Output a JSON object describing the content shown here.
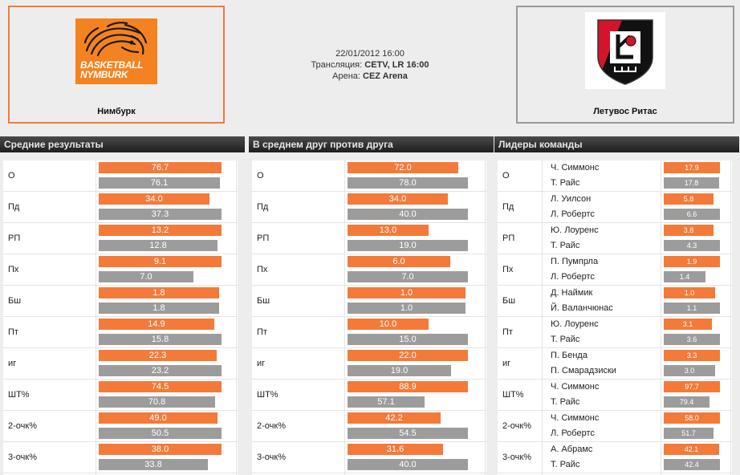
{
  "home_team": {
    "name": "Нимбурк",
    "logo_line1": "BASKETBALL",
    "logo_line2": "NYMBURK",
    "color": "#f47a3a"
  },
  "away_team": {
    "name": "Летувос Ритас",
    "color": "#9a9a9a"
  },
  "match": {
    "date": "22/01/2012 16:00",
    "broadcast_label": "Трансляция:",
    "broadcast": "CETV, LR 16:00",
    "arena_label": "Арена:",
    "arena": "CEZ Arena"
  },
  "colors": {
    "home_bar": "#f47a3a",
    "away_bar": "#9c9c9c"
  },
  "panels": [
    {
      "title": "Средние результаты",
      "rows": [
        {
          "label": "О",
          "home": "76.7",
          "away": "76.1",
          "home_frac": 1.0,
          "away_frac": 0.99
        },
        {
          "label": "Пд",
          "home": "34.0",
          "away": "37.3",
          "home_frac": 0.9,
          "away_frac": 1.0
        },
        {
          "label": "РП",
          "home": "13.2",
          "away": "12.8",
          "home_frac": 1.0,
          "away_frac": 0.97
        },
        {
          "label": "Пх",
          "home": "9.1",
          "away": "7.0",
          "home_frac": 1.0,
          "away_frac": 0.77
        },
        {
          "label": "Бш",
          "home": "1.8",
          "away": "1.8",
          "home_frac": 0.98,
          "away_frac": 0.98
        },
        {
          "label": "Пт",
          "home": "14.9",
          "away": "15.8",
          "home_frac": 0.94,
          "away_frac": 1.0
        },
        {
          "label": "иг",
          "home": "22.3",
          "away": "23.2",
          "home_frac": 0.96,
          "away_frac": 1.0
        },
        {
          "label": "ШТ%",
          "home": "74.5",
          "away": "70.8",
          "home_frac": 1.0,
          "away_frac": 0.95
        },
        {
          "label": "2-очк%",
          "home": "49.0",
          "away": "50.5",
          "home_frac": 0.97,
          "away_frac": 1.0
        },
        {
          "label": "3-очк%",
          "home": "38.0",
          "away": "33.8",
          "home_frac": 1.0,
          "away_frac": 0.89
        }
      ]
    },
    {
      "title": "В среднем друг против друга",
      "rows": [
        {
          "label": "О",
          "home": "72.0",
          "away": "78.0",
          "home_frac": 0.92,
          "away_frac": 1.0
        },
        {
          "label": "Пд",
          "home": "34.0",
          "away": "40.0",
          "home_frac": 0.83,
          "away_frac": 1.0
        },
        {
          "label": "РП",
          "home": "13.0",
          "away": "19.0",
          "home_frac": 0.67,
          "away_frac": 1.0
        },
        {
          "label": "Пх",
          "home": "6.0",
          "away": "7.0",
          "home_frac": 0.85,
          "away_frac": 1.0
        },
        {
          "label": "Бш",
          "home": "1.0",
          "away": "1.0",
          "home_frac": 0.98,
          "away_frac": 0.98
        },
        {
          "label": "Пт",
          "home": "10.0",
          "away": "15.0",
          "home_frac": 0.67,
          "away_frac": 1.0
        },
        {
          "label": "иг",
          "home": "22.0",
          "away": "19.0",
          "home_frac": 1.0,
          "away_frac": 0.86
        },
        {
          "label": "ШТ%",
          "home": "88.9",
          "away": "57.1",
          "home_frac": 1.0,
          "away_frac": 0.64
        },
        {
          "label": "2-очк%",
          "home": "42.2",
          "away": "54.5",
          "home_frac": 0.77,
          "away_frac": 1.0
        },
        {
          "label": "3-очк%",
          "home": "31.6",
          "away": "40.0",
          "home_frac": 0.79,
          "away_frac": 1.0
        }
      ]
    },
    {
      "title": "Лидеры команды",
      "rows": [
        {
          "label": "О",
          "home_player": "Ч. Симмонс",
          "away_player": "Т. Райс",
          "home": "17.9",
          "away": "17.8",
          "home_frac": 1.0,
          "away_frac": 0.99
        },
        {
          "label": "Пд",
          "home_player": "Л. Уилсон",
          "away_player": "Л. Робертс",
          "home": "5.8",
          "away": "6.6",
          "home_frac": 0.88,
          "away_frac": 1.0
        },
        {
          "label": "РП",
          "home_player": "Ю. Лоуренс",
          "away_player": "Т. Райс",
          "home": "3.8",
          "away": "4.3",
          "home_frac": 0.88,
          "away_frac": 1.0
        },
        {
          "label": "Пх",
          "home_player": "П. Пумпрла",
          "away_player": "Л. Робертс",
          "home": "1.9",
          "away": "1.4",
          "home_frac": 1.0,
          "away_frac": 0.74
        },
        {
          "label": "Бш",
          "home_player": "Д. Наймик",
          "away_player": "Й. Валанчюнас",
          "home": "1.0",
          "away": "1.1",
          "home_frac": 0.91,
          "away_frac": 1.0
        },
        {
          "label": "Пт",
          "home_player": "Ю. Лоуренс",
          "away_player": "Т. Райс",
          "home": "3.1",
          "away": "3.6",
          "home_frac": 0.86,
          "away_frac": 1.0
        },
        {
          "label": "иг",
          "home_player": "П. Бенда",
          "away_player": "П. Смарадзиски",
          "home": "3.3",
          "away": "3.0",
          "home_frac": 1.0,
          "away_frac": 0.91
        },
        {
          "label": "ШТ%",
          "home_player": "Ч. Симмонс",
          "away_player": "Т. Райс",
          "home": "97.7",
          "away": "79.4",
          "home_frac": 1.0,
          "away_frac": 0.81
        },
        {
          "label": "2-очк%",
          "home_player": "Ч. Симмонс",
          "away_player": "Л. Робертс",
          "home": "58.0",
          "away": "51.7",
          "home_frac": 1.0,
          "away_frac": 0.89
        },
        {
          "label": "3-очк%",
          "home_player": "А. Абрамс",
          "away_player": "Т. Райс",
          "home": "42.1",
          "away": "42.4",
          "home_frac": 0.99,
          "away_frac": 1.0
        }
      ]
    }
  ]
}
